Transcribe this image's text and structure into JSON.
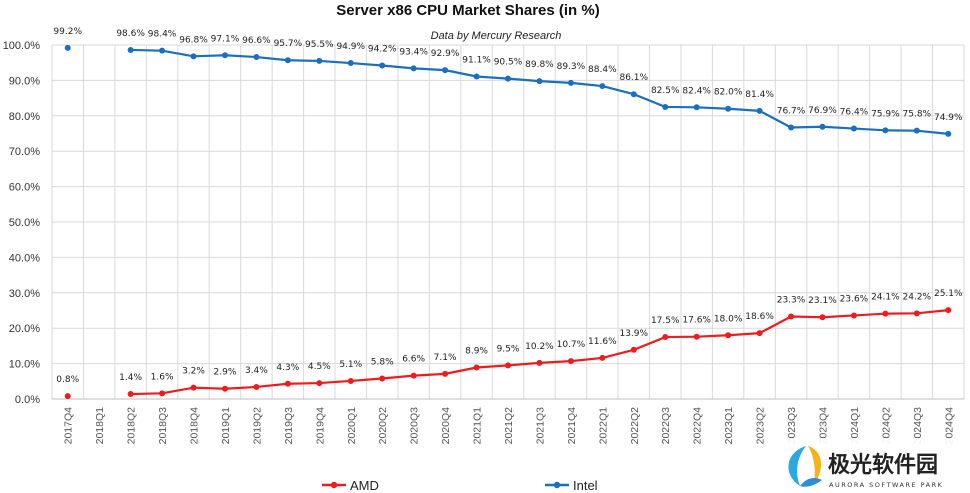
{
  "chart_data": {
    "type": "line",
    "title": "Server x86 CPU Market Shares (in %)",
    "subtitle": "Data by Mercury Research",
    "categories": [
      "2017Q4",
      "2018Q1",
      "2018Q2",
      "2018Q3",
      "2018Q4",
      "2019Q1",
      "2019Q2",
      "2019Q3",
      "2019Q4",
      "2020Q1",
      "2020Q2",
      "2020Q3",
      "2020Q4",
      "2021Q1",
      "2021Q2",
      "2021Q3",
      "2021Q4",
      "2022Q1",
      "2022Q2",
      "2022Q3",
      "2022Q4",
      "2023Q1",
      "2023Q2",
      "2023Q3",
      "2023Q4",
      "2024Q1",
      "2024Q2",
      "2024Q3",
      "2024Q4"
    ],
    "tick_labels": [
      "2017Q4",
      "2018Q1",
      "2018Q2",
      "2018Q3",
      "2018Q4",
      "2019Q1",
      "2019Q2",
      "2019Q3",
      "2019Q4",
      "2020Q1",
      "2020Q2",
      "2020Q3",
      "2020Q4",
      "2021Q1",
      "2021Q2",
      "2021Q3",
      "2021Q4",
      "2022Q1",
      "2022Q2",
      "2022Q3",
      "2022Q4",
      "2023Q1",
      "2023Q2",
      "2023Q3",
      "2023Q4",
      "2024Q1",
      "2024Q2",
      "2024Q3",
      "2024Q4"
    ],
    "series": [
      {
        "name": "AMD",
        "color": "#ee1c1c",
        "values": [
          0.8,
          null,
          1.4,
          1.6,
          3.2,
          2.9,
          3.4,
          4.3,
          4.5,
          5.1,
          5.8,
          6.6,
          7.1,
          8.9,
          9.5,
          10.2,
          10.7,
          11.6,
          13.9,
          17.5,
          17.6,
          18.0,
          18.6,
          23.3,
          23.1,
          23.6,
          24.1,
          24.2,
          25.1
        ],
        "labels": [
          "0.8%",
          null,
          "1.4%",
          "1.6%",
          "3.2%",
          "2.9%",
          "3.4%",
          "4.3%",
          "4.5%",
          "5.1%",
          "5.8%",
          "6.6%",
          "7.1%",
          "8.9%",
          "9.5%",
          "10.2%",
          "10.7%",
          "11.6%",
          "13.9%",
          "17.5%",
          "17.6%",
          "18.0%",
          "18.6%",
          "23.3%",
          "23.1%",
          "23.6%",
          "24.1%",
          "24.2%",
          "25.1%"
        ]
      },
      {
        "name": "Intel",
        "color": "#1a6fbf",
        "values": [
          99.2,
          null,
          98.6,
          98.4,
          96.8,
          97.1,
          96.6,
          95.7,
          95.5,
          94.9,
          94.2,
          93.4,
          92.9,
          91.1,
          90.5,
          89.8,
          89.3,
          88.4,
          86.1,
          82.5,
          82.4,
          82.0,
          81.4,
          76.7,
          76.9,
          76.4,
          75.9,
          75.8,
          74.9
        ],
        "labels": [
          "99.2%",
          null,
          "98.6%",
          "98.4%",
          "96.8%",
          "97.1%",
          "96.6%",
          "95.7%",
          "95.5%",
          "94.9%",
          "94.2%",
          "93.4%",
          "92.9%",
          "91.1%",
          "90.5%",
          "89.8%",
          "89.3%",
          "88.4%",
          "86.1%",
          "82.5%",
          "82.4%",
          "82.0%",
          "81.4%",
          "76.7%",
          "76.9%",
          "76.4%",
          "75.9%",
          "75.8%",
          "74.9%"
        ]
      }
    ],
    "ylim": [
      0,
      100
    ],
    "yticks": [
      "0.0%",
      "10.0%",
      "20.0%",
      "30.0%",
      "40.0%",
      "50.0%",
      "60.0%",
      "70.0%",
      "80.0%",
      "90.0%",
      "100.0%"
    ],
    "grid": true,
    "legend_placement": "bottom",
    "xlabel": "",
    "ylabel": ""
  },
  "watermark": {
    "text_cn": "极光软件园",
    "text_en": "AURORA SOFTWARE PARK"
  }
}
